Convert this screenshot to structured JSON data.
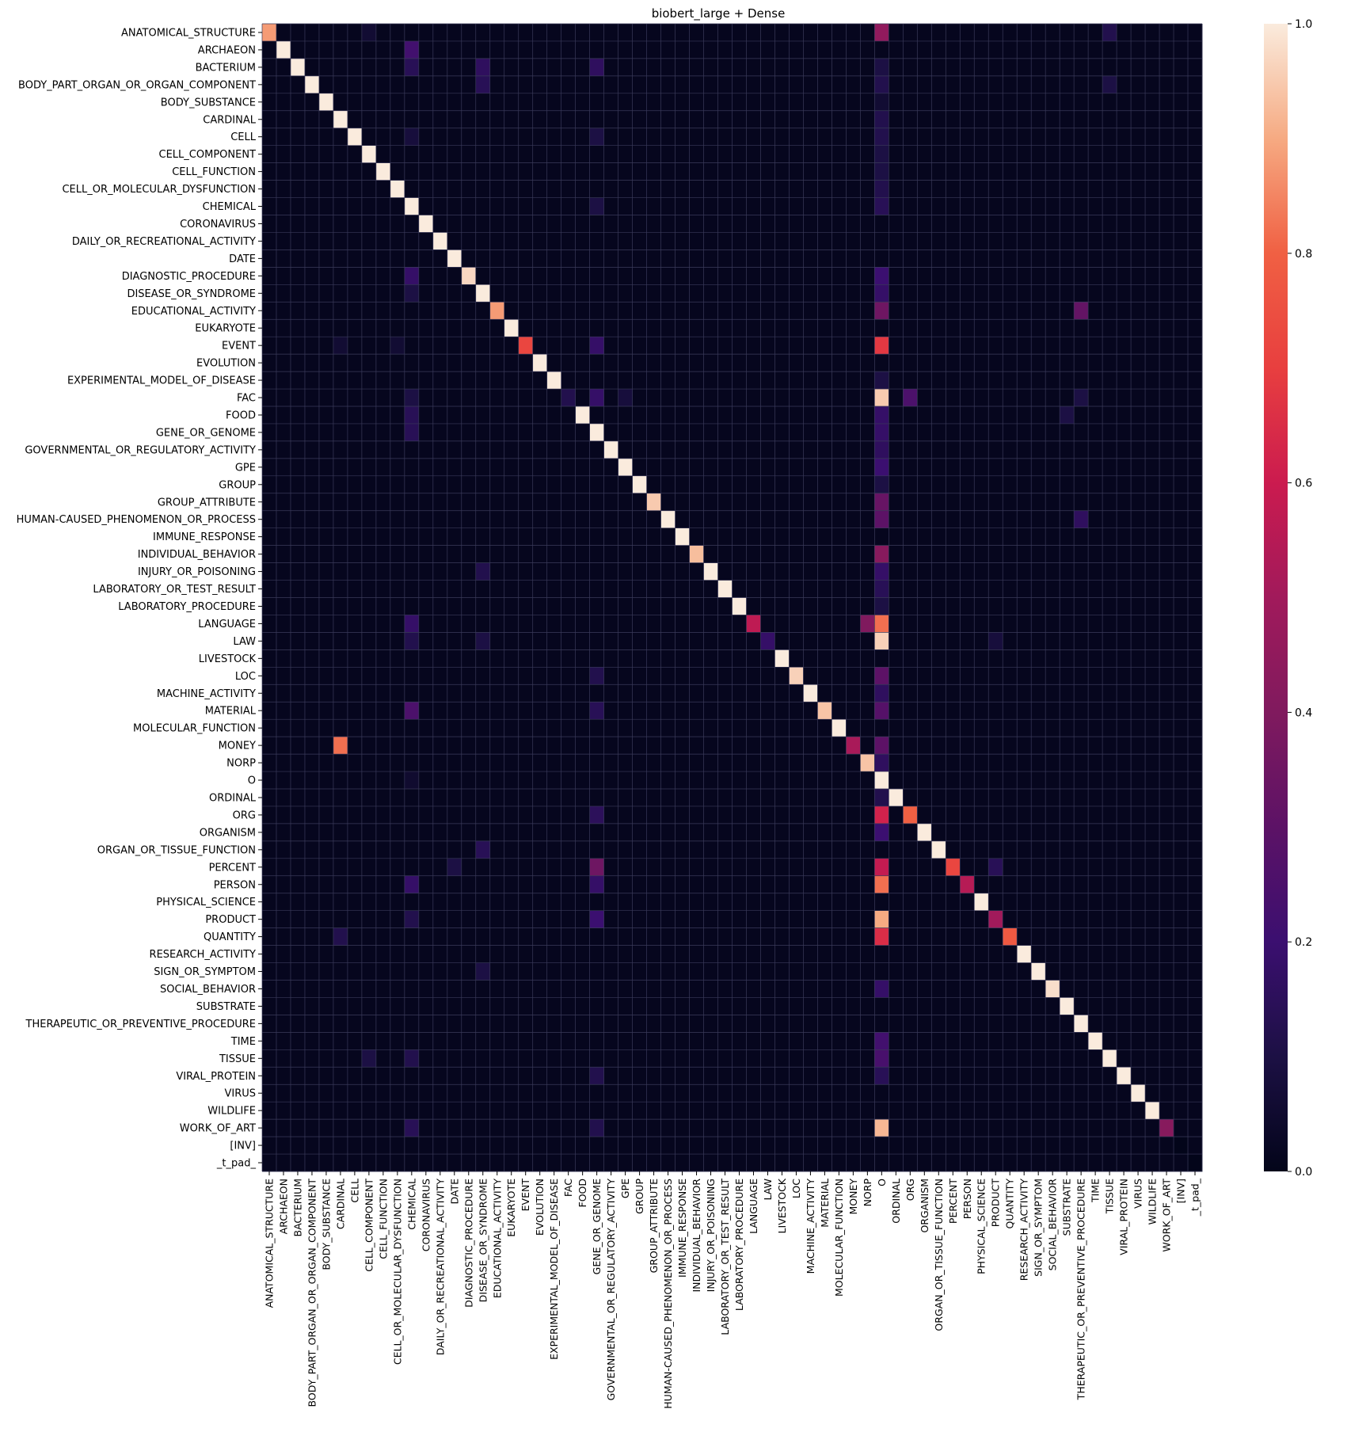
{
  "chart_data": {
    "type": "heatmap",
    "title": "biobert_large + Dense",
    "xlabel": "",
    "ylabel": "",
    "labels": [
      "ANATOMICAL_STRUCTURE",
      "ARCHAEON",
      "BACTERIUM",
      "BODY_PART_ORGAN_OR_ORGAN_COMPONENT",
      "BODY_SUBSTANCE",
      "CARDINAL",
      "CELL",
      "CELL_COMPONENT",
      "CELL_FUNCTION",
      "CELL_OR_MOLECULAR_DYSFUNCTION",
      "CHEMICAL",
      "CORONAVIRUS",
      "DAILY_OR_RECREATIONAL_ACTIVITY",
      "DATE",
      "DIAGNOSTIC_PROCEDURE",
      "DISEASE_OR_SYNDROME",
      "EDUCATIONAL_ACTIVITY",
      "EUKARYOTE",
      "EVENT",
      "EVOLUTION",
      "EXPERIMENTAL_MODEL_OF_DISEASE",
      "FAC",
      "FOOD",
      "GENE_OR_GENOME",
      "GOVERNMENTAL_OR_REGULATORY_ACTIVITY",
      "GPE",
      "GROUP",
      "GROUP_ATTRIBUTE",
      "HUMAN-CAUSED_PHENOMENON_OR_PROCESS",
      "IMMUNE_RESPONSE",
      "INDIVIDUAL_BEHAVIOR",
      "INJURY_OR_POISONING",
      "LABORATORY_OR_TEST_RESULT",
      "LABORATORY_PROCEDURE",
      "LANGUAGE",
      "LAW",
      "LIVESTOCK",
      "LOC",
      "MACHINE_ACTIVITY",
      "MATERIAL",
      "MOLECULAR_FUNCTION",
      "MONEY",
      "NORP",
      "O",
      "ORDINAL",
      "ORG",
      "ORGANISM",
      "ORGAN_OR_TISSUE_FUNCTION",
      "PERCENT",
      "PERSON",
      "PHYSICAL_SCIENCE",
      "PRODUCT",
      "QUANTITY",
      "RESEARCH_ACTIVITY",
      "SIGN_OR_SYMPTOM",
      "SOCIAL_BEHAVIOR",
      "SUBSTRATE",
      "THERAPEUTIC_OR_PREVENTIVE_PROCEDURE",
      "TIME",
      "TISSUE",
      "VIRAL_PROTEIN",
      "VIRUS",
      "WILDLIFE",
      "WORK_OF_ART",
      "[INV]",
      "_t_pad_"
    ],
    "diagonal": [
      0.88,
      1,
      1,
      1,
      1,
      1,
      1,
      1,
      1,
      1,
      1,
      1,
      1,
      1,
      0.97,
      1,
      0.88,
      1,
      0.72,
      1,
      1,
      0.12,
      1,
      1,
      1,
      1,
      1,
      0.95,
      1,
      1,
      0.93,
      1,
      1,
      1,
      0.57,
      0.18,
      1,
      0.96,
      1,
      0.94,
      1,
      0.52,
      0.94,
      1,
      1,
      0.8,
      1,
      1,
      0.72,
      0.55,
      1,
      0.5,
      0.78,
      1,
      1,
      0.98,
      1,
      1,
      1,
      1,
      1,
      1,
      1,
      0.42,
      0,
      0
    ],
    "off_diagonal": [
      {
        "row": "ANATOMICAL_STRUCTURE",
        "col": "O",
        "value": 0.45
      },
      {
        "row": "ANATOMICAL_STRUCTURE",
        "col": "TISSUE",
        "value": 0.12
      },
      {
        "row": "ANATOMICAL_STRUCTURE",
        "col": "CELL_COMPONENT",
        "value": 0.06
      },
      {
        "row": "ARCHAEON",
        "col": "CHEMICAL",
        "value": 0.22
      },
      {
        "row": "BACTERIUM",
        "col": "CHEMICAL",
        "value": 0.14
      },
      {
        "row": "BACTERIUM",
        "col": "DISEASE_OR_SYNDROME",
        "value": 0.16
      },
      {
        "row": "BACTERIUM",
        "col": "GENE_OR_GENOME",
        "value": 0.16
      },
      {
        "row": "BACTERIUM",
        "col": "O",
        "value": 0.1
      },
      {
        "row": "BODY_PART_ORGAN_OR_ORGAN_COMPONENT",
        "col": "DISEASE_OR_SYNDROME",
        "value": 0.14
      },
      {
        "row": "BODY_PART_ORGAN_OR_ORGAN_COMPONENT",
        "col": "O",
        "value": 0.12
      },
      {
        "row": "BODY_PART_ORGAN_OR_ORGAN_COMPONENT",
        "col": "TISSUE",
        "value": 0.1
      },
      {
        "row": "BODY_SUBSTANCE",
        "col": "O",
        "value": 0.06
      },
      {
        "row": "CARDINAL",
        "col": "O",
        "value": 0.12
      },
      {
        "row": "CELL",
        "col": "CHEMICAL",
        "value": 0.08
      },
      {
        "row": "CELL",
        "col": "GENE_OR_GENOME",
        "value": 0.1
      },
      {
        "row": "CELL",
        "col": "O",
        "value": 0.12
      },
      {
        "row": "CELL_COMPONENT",
        "col": "O",
        "value": 0.1
      },
      {
        "row": "CELL_FUNCTION",
        "col": "O",
        "value": 0.1
      },
      {
        "row": "CELL_OR_MOLECULAR_DYSFUNCTION",
        "col": "O",
        "value": 0.12
      },
      {
        "row": "CHEMICAL",
        "col": "GENE_OR_GENOME",
        "value": 0.1
      },
      {
        "row": "CHEMICAL",
        "col": "O",
        "value": 0.14
      },
      {
        "row": "DIAGNOSTIC_PROCEDURE",
        "col": "CHEMICAL",
        "value": 0.18
      },
      {
        "row": "DIAGNOSTIC_PROCEDURE",
        "col": "O",
        "value": 0.2
      },
      {
        "row": "DISEASE_OR_SYNDROME",
        "col": "CHEMICAL",
        "value": 0.1
      },
      {
        "row": "DISEASE_OR_SYNDROME",
        "col": "O",
        "value": 0.18
      },
      {
        "row": "EDUCATIONAL_ACTIVITY",
        "col": "O",
        "value": 0.35
      },
      {
        "row": "EDUCATIONAL_ACTIVITY",
        "col": "THERAPEUTIC_OR_PREVENTIVE_PROCEDURE",
        "value": 0.32
      },
      {
        "row": "EVENT",
        "col": "O",
        "value": 0.68
      },
      {
        "row": "EVENT",
        "col": "GENE_OR_GENOME",
        "value": 0.18
      },
      {
        "row": "EVENT",
        "col": "CARDINAL",
        "value": 0.06
      },
      {
        "row": "EVENT",
        "col": "CELL_OR_MOLECULAR_DYSFUNCTION",
        "value": 0.06
      },
      {
        "row": "EXPERIMENTAL_MODEL_OF_DISEASE",
        "col": "O",
        "value": 0.1
      },
      {
        "row": "FAC",
        "col": "O",
        "value": 0.95
      },
      {
        "row": "FAC",
        "col": "ORG",
        "value": 0.25
      },
      {
        "row": "FAC",
        "col": "GENE_OR_GENOME",
        "value": 0.18
      },
      {
        "row": "FAC",
        "col": "GPE",
        "value": 0.08
      },
      {
        "row": "FAC",
        "col": "CHEMICAL",
        "value": 0.1
      },
      {
        "row": "FAC",
        "col": "THERAPEUTIC_OR_PREVENTIVE_PROCEDURE",
        "value": 0.1
      },
      {
        "row": "FOOD",
        "col": "O",
        "value": 0.18
      },
      {
        "row": "FOOD",
        "col": "CHEMICAL",
        "value": 0.14
      },
      {
        "row": "FOOD",
        "col": "SUBSTRATE",
        "value": 0.1
      },
      {
        "row": "GENE_OR_GENOME",
        "col": "O",
        "value": 0.18
      },
      {
        "row": "GENE_OR_GENOME",
        "col": "CHEMICAL",
        "value": 0.14
      },
      {
        "row": "GOVERNMENTAL_OR_REGULATORY_ACTIVITY",
        "col": "O",
        "value": 0.16
      },
      {
        "row": "GPE",
        "col": "O",
        "value": 0.2
      },
      {
        "row": "GROUP",
        "col": "O",
        "value": 0.1
      },
      {
        "row": "GROUP_ATTRIBUTE",
        "col": "O",
        "value": 0.33
      },
      {
        "row": "HUMAN-CAUSED_PHENOMENON_OR_PROCESS",
        "col": "O",
        "value": 0.3
      },
      {
        "row": "HUMAN-CAUSED_PHENOMENON_OR_PROCESS",
        "col": "THERAPEUTIC_OR_PREVENTIVE_PROCEDURE",
        "value": 0.16
      },
      {
        "row": "INDIVIDUAL_BEHAVIOR",
        "col": "O",
        "value": 0.42
      },
      {
        "row": "INJURY_OR_POISONING",
        "col": "O",
        "value": 0.18
      },
      {
        "row": "INJURY_OR_POISONING",
        "col": "DISEASE_OR_SYNDROME",
        "value": 0.12
      },
      {
        "row": "LABORATORY_OR_TEST_RESULT",
        "col": "O",
        "value": 0.14
      },
      {
        "row": "LABORATORY_PROCEDURE",
        "col": "O",
        "value": 0.1
      },
      {
        "row": "LANGUAGE",
        "col": "O",
        "value": 0.82
      },
      {
        "row": "LANGUAGE",
        "col": "NORP",
        "value": 0.4
      },
      {
        "row": "LANGUAGE",
        "col": "CHEMICAL",
        "value": 0.18
      },
      {
        "row": "LAW",
        "col": "O",
        "value": 0.96
      },
      {
        "row": "LAW",
        "col": "CHEMICAL",
        "value": 0.12
      },
      {
        "row": "LAW",
        "col": "DISEASE_OR_SYNDROME",
        "value": 0.1
      },
      {
        "row": "LAW",
        "col": "PRODUCT",
        "value": 0.08
      },
      {
        "row": "LOC",
        "col": "O",
        "value": 0.3
      },
      {
        "row": "LOC",
        "col": "GENE_OR_GENOME",
        "value": 0.12
      },
      {
        "row": "MACHINE_ACTIVITY",
        "col": "O",
        "value": 0.16
      },
      {
        "row": "MATERIAL",
        "col": "O",
        "value": 0.28
      },
      {
        "row": "MATERIAL",
        "col": "CHEMICAL",
        "value": 0.25
      },
      {
        "row": "MATERIAL",
        "col": "GENE_OR_GENOME",
        "value": 0.14
      },
      {
        "row": "MONEY",
        "col": "CARDINAL",
        "value": 0.82
      },
      {
        "row": "MONEY",
        "col": "O",
        "value": 0.3
      },
      {
        "row": "NORP",
        "col": "O",
        "value": 0.16
      },
      {
        "row": "O",
        "col": "CHEMICAL",
        "value": 0.05
      },
      {
        "row": "ORDINAL",
        "col": "O",
        "value": 0.12
      },
      {
        "row": "ORG",
        "col": "O",
        "value": 0.62
      },
      {
        "row": "ORG",
        "col": "GENE_OR_GENOME",
        "value": 0.15
      },
      {
        "row": "ORGANISM",
        "col": "O",
        "value": 0.2
      },
      {
        "row": "ORGAN_OR_TISSUE_FUNCTION",
        "col": "DISEASE_OR_SYNDROME",
        "value": 0.14
      },
      {
        "row": "PERCENT",
        "col": "O",
        "value": 0.58
      },
      {
        "row": "PERCENT",
        "col": "GENE_OR_GENOME",
        "value": 0.35
      },
      {
        "row": "PERCENT",
        "col": "PRODUCT",
        "value": 0.14
      },
      {
        "row": "PERCENT",
        "col": "DATE",
        "value": 0.1
      },
      {
        "row": "PERSON",
        "col": "O",
        "value": 0.82
      },
      {
        "row": "PERSON",
        "col": "CHEMICAL",
        "value": 0.18
      },
      {
        "row": "PERSON",
        "col": "GENE_OR_GENOME",
        "value": 0.18
      },
      {
        "row": "PRODUCT",
        "col": "O",
        "value": 0.9
      },
      {
        "row": "PRODUCT",
        "col": "GENE_OR_GENOME",
        "value": 0.2
      },
      {
        "row": "PRODUCT",
        "col": "CHEMICAL",
        "value": 0.12
      },
      {
        "row": "QUANTITY",
        "col": "O",
        "value": 0.65
      },
      {
        "row": "QUANTITY",
        "col": "CARDINAL",
        "value": 0.12
      },
      {
        "row": "SIGN_OR_SYMPTOM",
        "col": "DISEASE_OR_SYNDROME",
        "value": 0.1
      },
      {
        "row": "SOCIAL_BEHAVIOR",
        "col": "O",
        "value": 0.18
      },
      {
        "row": "TIME",
        "col": "O",
        "value": 0.22
      },
      {
        "row": "TISSUE",
        "col": "O",
        "value": 0.24
      },
      {
        "row": "TISSUE",
        "col": "CHEMICAL",
        "value": 0.12
      },
      {
        "row": "TISSUE",
        "col": "CELL_COMPONENT",
        "value": 0.1
      },
      {
        "row": "VIRAL_PROTEIN",
        "col": "O",
        "value": 0.14
      },
      {
        "row": "VIRAL_PROTEIN",
        "col": "GENE_OR_GENOME",
        "value": 0.12
      },
      {
        "row": "WORK_OF_ART",
        "col": "O",
        "value": 0.92
      },
      {
        "row": "WORK_OF_ART",
        "col": "CHEMICAL",
        "value": 0.14
      },
      {
        "row": "WORK_OF_ART",
        "col": "GENE_OR_GENOME",
        "value": 0.12
      }
    ],
    "colorbar": {
      "colormap": "rocket",
      "range": [
        0.0,
        1.0
      ],
      "ticks": [
        "0.0",
        "0.2",
        "0.4",
        "0.6",
        "0.8",
        "1.0"
      ]
    },
    "grid": true
  }
}
